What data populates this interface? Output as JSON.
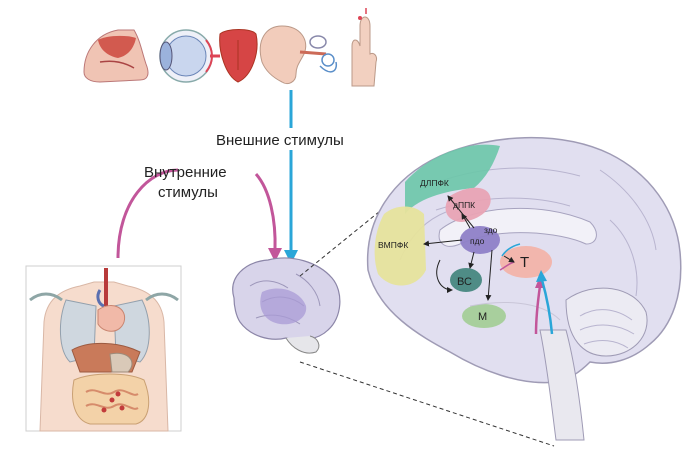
{
  "labels": {
    "external": "Внешние стимулы",
    "internal_line1": "Внутренние",
    "internal_line2": "стимулы"
  },
  "regions": {
    "dlpfk": "ДЛПФК",
    "dppk": "дППК",
    "vmpfk": "ВМПФК",
    "pdo": "пдо",
    "zdo": "здо",
    "vs": "ВС",
    "m": "М",
    "t": "Т"
  },
  "colors": {
    "external_arrow": "#2aa6d8",
    "internal_arrow": "#c2569a",
    "dlpfk": "#6cc6a8",
    "dppk": "#e8a3b4",
    "vmpfk": "#e6e39c",
    "pdo": "#8e7fc7",
    "vs": "#4f8c86",
    "m": "#a8cf9d",
    "t": "#f2b6ad",
    "brain_base": "#e1dff0"
  },
  "sense_icons": [
    "nose-icon",
    "eye-icon",
    "tongue-icon",
    "ear-icon",
    "finger-touch-icon"
  ]
}
